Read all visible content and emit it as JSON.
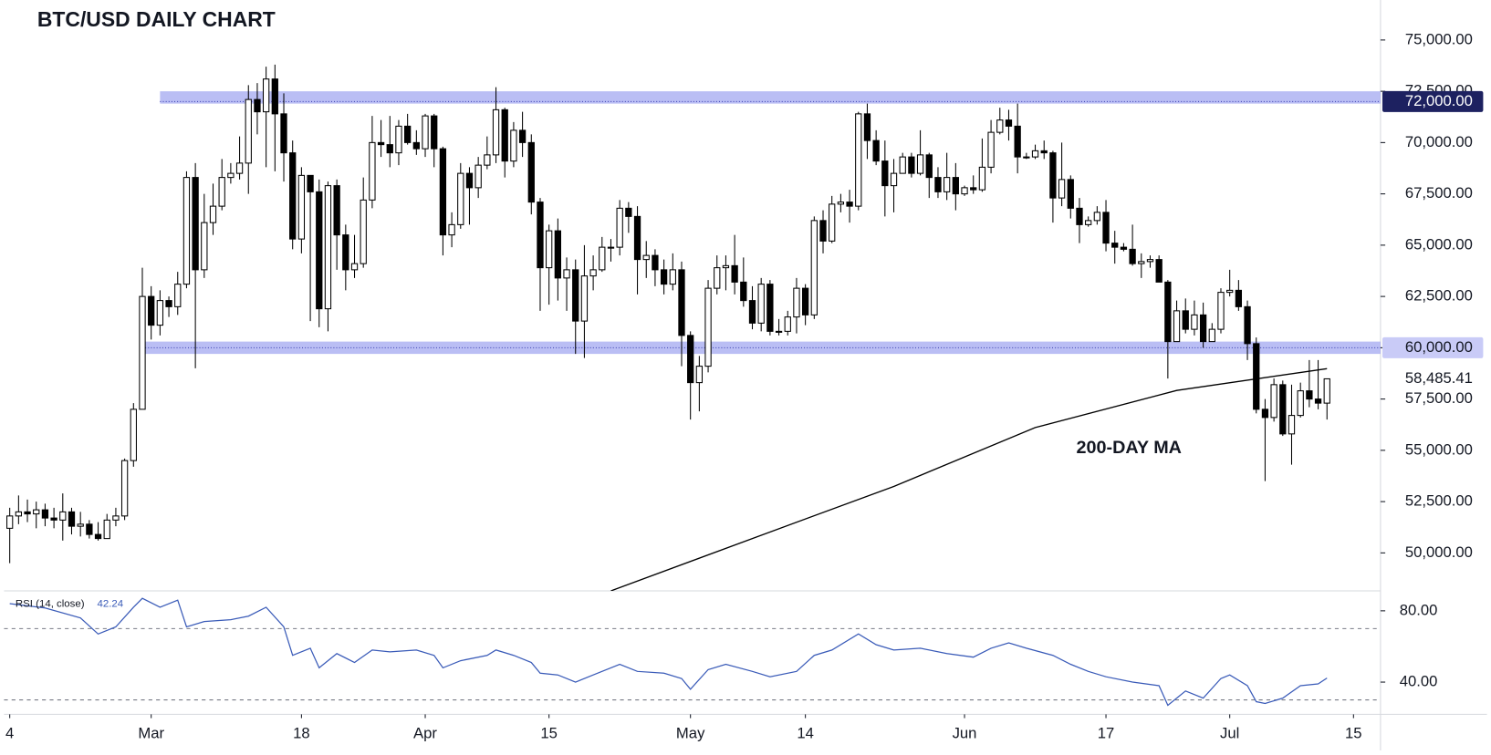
{
  "chart_data": [
    {
      "type": "candlestick",
      "title": "BTC/USD DAILY CHART",
      "x": [
        "02-14",
        "02-15",
        "02-16",
        "02-17",
        "02-18",
        "02-19",
        "02-20",
        "02-21",
        "02-22",
        "02-23",
        "02-24",
        "02-25",
        "02-26",
        "02-27",
        "02-28",
        "02-29",
        "03-01",
        "03-02",
        "03-03",
        "03-04",
        "03-05",
        "03-06",
        "03-07",
        "03-08",
        "03-09",
        "03-10",
        "03-11",
        "03-12",
        "03-13",
        "03-14",
        "03-15",
        "03-16",
        "03-17",
        "03-18",
        "03-19",
        "03-20",
        "03-21",
        "03-22",
        "03-23",
        "03-24",
        "03-25",
        "03-26",
        "03-27",
        "03-28",
        "03-29",
        "03-30",
        "03-31",
        "04-01",
        "04-02",
        "04-03",
        "04-04",
        "04-05",
        "04-06",
        "04-07",
        "04-08",
        "04-09",
        "04-10",
        "04-11",
        "04-12",
        "04-13",
        "04-14",
        "04-15",
        "04-16",
        "04-17",
        "04-18",
        "04-19",
        "04-20",
        "04-21",
        "04-22",
        "04-23",
        "04-24",
        "04-25",
        "04-26",
        "04-27",
        "04-28",
        "04-29",
        "04-30",
        "05-01",
        "05-02",
        "05-03",
        "05-04",
        "05-05",
        "05-06",
        "05-07",
        "05-08",
        "05-09",
        "05-10",
        "05-11",
        "05-12",
        "05-13",
        "05-14",
        "05-15",
        "05-16",
        "05-17",
        "05-18",
        "05-19",
        "05-20",
        "05-21",
        "05-22",
        "05-23",
        "05-24",
        "05-25",
        "05-26",
        "05-27",
        "05-28",
        "05-29",
        "05-30",
        "05-31",
        "06-01",
        "06-02",
        "06-03",
        "06-04",
        "06-05",
        "06-06",
        "06-07",
        "06-08",
        "06-09",
        "06-10",
        "06-11",
        "06-12",
        "06-13",
        "06-14",
        "06-15",
        "06-16",
        "06-17",
        "06-18",
        "06-19",
        "06-20",
        "06-21",
        "06-22",
        "06-23",
        "06-24",
        "06-25",
        "06-26",
        "06-27",
        "06-28",
        "06-29",
        "06-30",
        "07-01",
        "07-02",
        "07-03",
        "07-04",
        "07-05",
        "07-06",
        "07-07",
        "07-08",
        "07-09",
        "07-10",
        "07-11",
        "07-12"
      ],
      "open": [
        51200,
        51800,
        52000,
        51900,
        52100,
        51700,
        51600,
        52000,
        51300,
        51400,
        50900,
        50700,
        51600,
        51800,
        54500,
        57000,
        62500,
        61100,
        62300,
        62000,
        63100,
        68300,
        63800,
        66100,
        66900,
        68300,
        68500,
        69000,
        72100,
        71500,
        73100,
        71400,
        69500,
        65300,
        68400,
        67600,
        61900,
        67900,
        65500,
        63800,
        64100,
        67200,
        70000,
        69900,
        69500,
        70800,
        70000,
        69700,
        71300,
        69700,
        65500,
        66000,
        68500,
        67800,
        68900,
        69400,
        71600,
        69100,
        70600,
        70000,
        67100,
        63900,
        65700,
        63400,
        63800,
        61300,
        63500,
        63800,
        64900,
        64900,
        66800,
        66400,
        64300,
        64500,
        63800,
        63100,
        63800,
        60600,
        58300,
        59100,
        62900,
        63900,
        64000,
        63200,
        62300,
        61200,
        63100,
        60800,
        60800,
        61500,
        62900,
        61600,
        66200,
        65200,
        67000,
        67100,
        66900,
        71400,
        70100,
        69100,
        67900,
        68500,
        69300,
        68500,
        69400,
        68300,
        67600,
        68300,
        67500,
        67800,
        67700,
        68800,
        70500,
        71100,
        70800,
        69300,
        69300,
        69600,
        69500,
        67300,
        68200,
        66800,
        66000,
        66200,
        66600,
        65100,
        64900,
        64800,
        64100,
        64200,
        64300,
        63200,
        60300,
        61800,
        60900,
        61600,
        60300,
        60900,
        62700,
        62800,
        62000,
        60200,
        57000,
        56600,
        58200,
        55800,
        56700,
        57900,
        57500,
        57300
      ],
      "high": [
        52200,
        52800,
        52600,
        52500,
        52400,
        52200,
        52900,
        52200,
        52000,
        51600,
        51500,
        51900,
        52200,
        54600,
        57300,
        63900,
        63000,
        62800,
        62500,
        63700,
        68600,
        69000,
        67500,
        68000,
        69200,
        69000,
        70300,
        72800,
        72900,
        73700,
        73800,
        72400,
        70100,
        68800,
        68300,
        68200,
        68100,
        68200,
        66000,
        65500,
        68300,
        71300,
        71100,
        71300,
        71100,
        71400,
        70600,
        71400,
        71400,
        69800,
        66600,
        69000,
        68800,
        69300,
        70300,
        72700,
        71700,
        71000,
        71500,
        70400,
        67300,
        66000,
        66300,
        64400,
        64300,
        65000,
        64500,
        65400,
        65300,
        67200,
        67100,
        66900,
        65200,
        64800,
        64300,
        64600,
        64200,
        60800,
        59600,
        63300,
        64500,
        64500,
        65500,
        64400,
        63000,
        63400,
        63300,
        61400,
        61800,
        63400,
        63100,
        66400,
        66700,
        67400,
        67500,
        67700,
        71500,
        71900,
        70600,
        70100,
        69200,
        69500,
        69500,
        70600,
        69500,
        68800,
        69500,
        69000,
        67900,
        68400,
        70200,
        71100,
        71700,
        71600,
        71900,
        69500,
        69900,
        70100,
        69600,
        70000,
        68400,
        67300,
        66400,
        66900,
        67200,
        65700,
        65100,
        66000,
        64600,
        64500,
        64500,
        63300,
        62300,
        62400,
        62300,
        62200,
        61200,
        62900,
        63800,
        63300,
        62300,
        60500,
        57500,
        58500,
        58400,
        58200,
        58300,
        59400,
        59400,
        58500
      ],
      "low": [
        49500,
        51400,
        51500,
        51200,
        51300,
        51200,
        50600,
        50900,
        50800,
        50700,
        50600,
        50700,
        51300,
        51600,
        54200,
        57000,
        60400,
        60600,
        61500,
        61600,
        62900,
        59000,
        63400,
        65500,
        66700,
        68000,
        68200,
        67500,
        70400,
        68800,
        68600,
        68100,
        64800,
        64600,
        61300,
        61000,
        60800,
        63800,
        62800,
        63400,
        63900,
        66800,
        69300,
        68800,
        68900,
        69900,
        69400,
        69300,
        68800,
        64500,
        64900,
        65800,
        66000,
        67300,
        68700,
        69000,
        68300,
        68800,
        69300,
        66500,
        61800,
        62100,
        62300,
        61800,
        59700,
        59500,
        62800,
        63700,
        64200,
        64500,
        65600,
        62600,
        63400,
        63000,
        62600,
        62800,
        59100,
        56500,
        56900,
        58800,
        62600,
        62800,
        62600,
        62000,
        60900,
        60800,
        60600,
        60600,
        60600,
        60700,
        61100,
        61400,
        64600,
        65100,
        66600,
        66100,
        66700,
        69200,
        68900,
        66400,
        66600,
        68500,
        68300,
        68400,
        67300,
        67300,
        67200,
        66700,
        67400,
        67500,
        67600,
        68500,
        70400,
        70100,
        68500,
        69200,
        69200,
        69200,
        66100,
        66900,
        66300,
        65100,
        65900,
        66000,
        64700,
        64100,
        64700,
        64000,
        63400,
        63900,
        63200,
        58500,
        60300,
        60700,
        60600,
        60000,
        60300,
        60700,
        62500,
        61800,
        59400,
        56800,
        53500,
        56400,
        55700,
        54300,
        56600,
        57100,
        57000,
        56500
      ],
      "close": [
        51800,
        52000,
        51900,
        52100,
        51700,
        51600,
        52000,
        51300,
        51400,
        50900,
        50700,
        51600,
        51800,
        54500,
        57000,
        62500,
        61100,
        62300,
        62000,
        63100,
        68300,
        63800,
        66100,
        66900,
        68300,
        68500,
        69000,
        72100,
        71500,
        73100,
        71400,
        69500,
        65300,
        68400,
        67600,
        61900,
        67900,
        65500,
        63800,
        64100,
        67200,
        70000,
        69900,
        69500,
        70800,
        70000,
        69700,
        71300,
        69700,
        65500,
        66000,
        68500,
        67800,
        68900,
        69400,
        71600,
        69100,
        70600,
        70000,
        67100,
        63900,
        65700,
        63400,
        63800,
        61300,
        63500,
        63800,
        64900,
        64900,
        66800,
        66400,
        64300,
        64500,
        63800,
        63100,
        63800,
        60600,
        58300,
        59100,
        62900,
        63900,
        64000,
        63200,
        62300,
        61200,
        63100,
        60800,
        60800,
        61500,
        62900,
        61600,
        66200,
        65200,
        67000,
        67100,
        66900,
        71400,
        70100,
        69100,
        67900,
        68500,
        69300,
        68500,
        69400,
        68300,
        67600,
        68300,
        67500,
        67800,
        67700,
        68800,
        70500,
        71100,
        70800,
        69300,
        69300,
        69600,
        69500,
        67300,
        68200,
        66800,
        66000,
        66200,
        66600,
        65100,
        64900,
        64800,
        64100,
        64200,
        64300,
        63200,
        60300,
        61800,
        60900,
        61600,
        60300,
        60900,
        62700,
        62800,
        62000,
        60200,
        57000,
        56600,
        58200,
        55800,
        56700,
        57900,
        57500,
        57300,
        58485.41
      ],
      "up_color": "#ffffff",
      "down_color": "#000000",
      "outline_color": "#000000",
      "ylim": [
        48150,
        76950
      ],
      "yticks": [
        {
          "value": 50000,
          "label": "50,000.00"
        },
        {
          "value": 52500,
          "label": "52,500.00"
        },
        {
          "value": 55000,
          "label": "55,000.00"
        },
        {
          "value": 57500,
          "label": "57,500.00"
        },
        {
          "value": 60000,
          "label": "60,000.00"
        },
        {
          "value": 62500,
          "label": "62,500.00"
        },
        {
          "value": 65000,
          "label": "65,000.00"
        },
        {
          "value": 67500,
          "label": "67,500.00"
        },
        {
          "value": 70000,
          "label": "70,000.00"
        },
        {
          "value": 72500,
          "label": "72,500.00"
        },
        {
          "value": 75000,
          "label": "75,000.00"
        }
      ],
      "xticks": [
        {
          "value": "02-14",
          "label": "4"
        },
        {
          "value": "03-01",
          "label": "Mar"
        },
        {
          "value": "03-18",
          "label": "18"
        },
        {
          "value": "04-01",
          "label": "Apr"
        },
        {
          "value": "04-15",
          "label": "15"
        },
        {
          "value": "05-01",
          "label": "May"
        },
        {
          "value": "05-14",
          "label": "14"
        },
        {
          "value": "06-01",
          "label": "Jun"
        },
        {
          "value": "06-17",
          "label": "17"
        },
        {
          "value": "07-01",
          "label": "Jul"
        },
        {
          "value": "07-15",
          "label": "15"
        }
      ],
      "levels": [
        {
          "value": 72000,
          "label": "72,000.00",
          "low": 71900,
          "high": 72500,
          "start": "03-02",
          "color": "#9da2f0",
          "label_fill": "#1d2160",
          "label_text": "#ffffff"
        },
        {
          "value": 60000,
          "label": "60,000.00",
          "low": 59700,
          "high": 60300,
          "start": "02-29",
          "color": "#9da2f0",
          "label_fill": "#c9cbf7",
          "label_text": "#131722"
        }
      ],
      "last_price": {
        "value": 58485.41,
        "label": "58,485.41"
      },
      "ma": {
        "name": "200-DAY MA",
        "color": "#000000",
        "x": [
          "04-22",
          "05-08",
          "05-24",
          "06-09",
          "06-25",
          "07-12"
        ],
        "values": [
          48150,
          50700,
          53240,
          56110,
          57920,
          58980
        ]
      }
    },
    {
      "type": "line",
      "label": "RSI (14, close)",
      "color": "#3a5bb8",
      "x": [
        "02-14",
        "02-18",
        "02-22",
        "02-24",
        "02-26",
        "02-28",
        "02-29",
        "03-02",
        "03-04",
        "03-05",
        "03-07",
        "03-10",
        "03-12",
        "03-14",
        "03-16",
        "03-17",
        "03-19",
        "03-20",
        "03-22",
        "03-24",
        "03-26",
        "03-28",
        "03-31",
        "04-02",
        "04-03",
        "04-05",
        "04-08",
        "04-09",
        "04-11",
        "04-13",
        "04-14",
        "04-16",
        "04-18",
        "04-20",
        "04-23",
        "04-25",
        "04-28",
        "04-30",
        "05-01",
        "05-03",
        "05-05",
        "05-08",
        "05-10",
        "05-13",
        "05-15",
        "05-17",
        "05-20",
        "05-22",
        "05-24",
        "05-27",
        "05-30",
        "06-02",
        "06-04",
        "06-06",
        "06-08",
        "06-11",
        "06-13",
        "06-15",
        "06-17",
        "06-20",
        "06-23",
        "06-24",
        "06-26",
        "06-28",
        "06-30",
        "07-01",
        "07-03",
        "07-04",
        "07-05",
        "07-07",
        "07-09",
        "07-11",
        "07-12"
      ],
      "values": [
        84,
        81.6,
        76,
        67,
        71,
        82,
        87,
        82,
        86,
        71,
        74,
        75,
        77,
        82,
        71,
        55,
        59,
        48,
        56,
        51,
        58,
        57,
        58,
        55,
        48,
        52,
        55,
        58,
        55,
        51,
        45,
        44,
        40,
        44,
        50,
        46,
        45,
        42,
        36,
        47,
        50,
        46,
        43,
        46,
        55,
        58,
        67,
        61,
        58,
        59,
        56,
        54,
        59,
        62,
        59,
        55,
        50,
        46,
        43,
        40,
        38,
        27,
        35,
        31,
        42,
        44,
        38,
        29,
        28,
        31,
        38,
        39,
        42.24
      ],
      "ylim": [
        21.9,
        91.2
      ],
      "yticks": [
        {
          "value": 80,
          "label": "80.00"
        },
        {
          "value": 40,
          "label": "40.00"
        }
      ],
      "bands": [
        70,
        30
      ]
    }
  ]
}
